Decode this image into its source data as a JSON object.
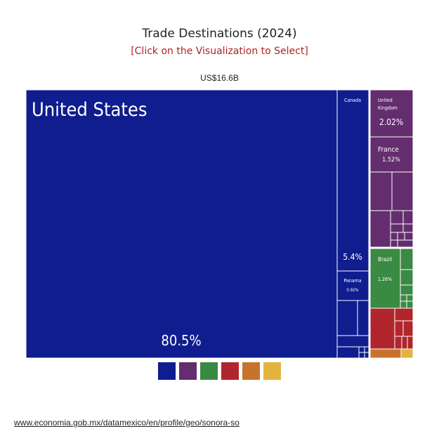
{
  "header": {
    "title": "Trade Destinations (2024)",
    "subtitle": "[Click on the Visualization to Select]",
    "total": "US$16.6B"
  },
  "source_link": "www.economia.gob.mx/datamexico/en/profile/geo/sonora-so",
  "legend": {
    "colors": [
      "#0f1d8f",
      "#632d6e",
      "#3b8a43",
      "#b0262c",
      "#c8732b",
      "#e2b43f"
    ]
  },
  "chart_data": {
    "type": "treemap",
    "title": "Trade Destinations (2024)",
    "total": "US$16.6B",
    "items": [
      {
        "name": "United States",
        "share_pct": 80.5,
        "label": "80.5%",
        "color": "#0f1d8f"
      },
      {
        "name": "Canada",
        "share_pct": 5.4,
        "label": "5.4%",
        "color": "#0f1d8f"
      },
      {
        "name": "Panama",
        "share_pct": 0.92,
        "label": "0.92%",
        "color": "#0f1d8f"
      },
      {
        "name": "United Kingdom",
        "share_pct": 2.02,
        "label": "2.02%",
        "color": "#632d6e"
      },
      {
        "name": "France",
        "share_pct": 1.52,
        "label": "1.52%",
        "color": "#632d6e"
      },
      {
        "name": "Brazil",
        "share_pct": 1.26,
        "label": "1.26%",
        "color": "#3b8a43"
      }
    ]
  }
}
